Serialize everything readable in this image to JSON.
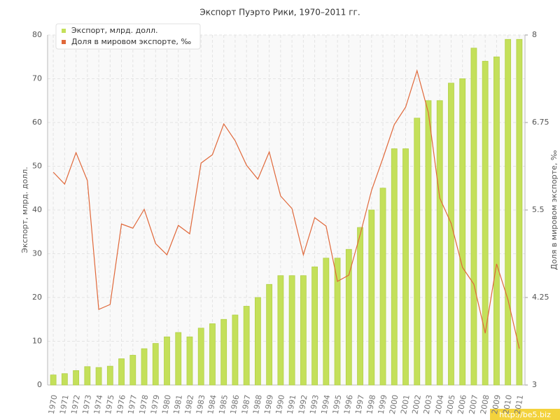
{
  "chart_data": {
    "type": "bar",
    "title": "Экспорт Пуэрто Рики, 1970–2011 гг.",
    "y_label": "Экспорт, млрд. долл.",
    "y2_label": "Доля в мировом экспорте, ‰",
    "watermark": "http://be5.biz",
    "categories": [
      "1970",
      "1971",
      "1972",
      "1973",
      "1974",
      "1975",
      "1976",
      "1977",
      "1978",
      "1979",
      "1980",
      "1981",
      "1982",
      "1983",
      "1984",
      "1985",
      "1986",
      "1987",
      "1988",
      "1989",
      "1990",
      "1991",
      "1992",
      "1993",
      "1994",
      "1995",
      "1996",
      "1997",
      "1998",
      "1999",
      "2000",
      "2001",
      "2002",
      "2003",
      "2004",
      "2005",
      "2006",
      "2007",
      "2008",
      "2009",
      "2010",
      "2011"
    ],
    "series": [
      {
        "name": "Экспорт, млрд. долл.",
        "type": "bar",
        "color": "#c4e05a",
        "values": [
          2.3,
          2.6,
          3.3,
          4.2,
          4.0,
          4.3,
          6.0,
          6.8,
          8.3,
          9.5,
          11,
          12,
          11,
          13,
          14,
          15,
          16,
          18,
          20,
          23,
          25,
          25,
          25,
          27,
          29,
          29,
          31,
          36,
          40,
          45,
          54,
          54,
          61,
          65,
          65,
          69,
          70,
          77,
          74,
          75,
          79,
          79
        ]
      },
      {
        "name": "Доля в мировом экспорте, ‰",
        "type": "line",
        "axis": "y2",
        "color": "#e0683a",
        "values": [
          6.04,
          5.87,
          6.32,
          5.92,
          4.08,
          4.15,
          5.3,
          5.24,
          5.51,
          5.02,
          4.86,
          5.28,
          5.16,
          6.17,
          6.29,
          6.73,
          6.49,
          6.14,
          5.94,
          6.33,
          5.7,
          5.52,
          4.86,
          5.39,
          5.27,
          4.48,
          4.57,
          5.15,
          5.78,
          6.24,
          6.72,
          6.97,
          7.49,
          6.89,
          5.67,
          5.31,
          4.68,
          4.44,
          3.74,
          4.73,
          4.22,
          3.52
        ]
      }
    ],
    "ylim": [
      0,
      80
    ],
    "yticks": [
      0,
      10,
      20,
      30,
      40,
      50,
      60,
      70,
      80
    ],
    "y2lim": [
      3,
      8
    ],
    "y2ticks": [
      3,
      4.25,
      5.5,
      6.75,
      8
    ],
    "grid": true,
    "legend": "top-left"
  }
}
